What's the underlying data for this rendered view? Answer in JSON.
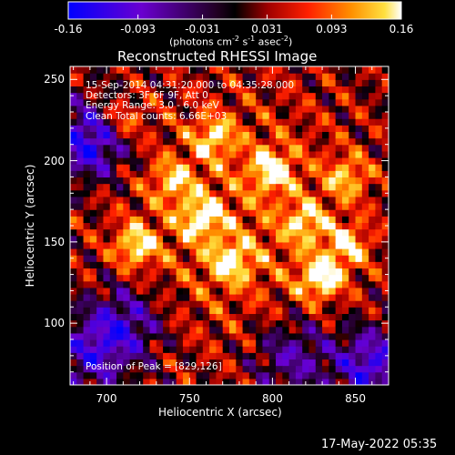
{
  "colorbar": {
    "tick_labels": [
      "-0.16",
      "-0.093",
      "-0.031",
      "0.031",
      "0.093",
      "0.16"
    ],
    "tick_values": [
      -0.16,
      -0.093,
      -0.031,
      0.031,
      0.093,
      0.16
    ],
    "range": [
      -0.16,
      0.16
    ],
    "unit_label_prefix": "(photons cm",
    "unit_exp1": "-2",
    "unit_mid": " s",
    "unit_exp2": "-1",
    "unit_mid2": " asec",
    "unit_exp3": "-2",
    "unit_close": ")",
    "colormap": "red-temperature (blue-purple-black-red-orange-yellow-white)"
  },
  "chart_data": {
    "type": "heatmap",
    "title": "Reconstructed RHESSI Image",
    "xlabel": "Heliocentric X (arcsec)",
    "ylabel": "Heliocentric Y (arcsec)",
    "xlim": [
      678,
      870
    ],
    "ylim": [
      62,
      258
    ],
    "x_ticks": [
      700,
      750,
      800,
      850
    ],
    "y_ticks": [
      100,
      150,
      200,
      250
    ],
    "x_tick_labels": [
      "700",
      "750",
      "800",
      "850"
    ],
    "y_tick_labels": [
      "100",
      "150",
      "200",
      "250"
    ],
    "peak": [
      829,
      126
    ],
    "bright_sources": [
      {
        "x": 829,
        "y": 128,
        "value": 0.16
      },
      {
        "x": 718,
        "y": 148,
        "value": 0.14
      },
      {
        "x": 757,
        "y": 165,
        "value": 0.13
      },
      {
        "x": 775,
        "y": 138,
        "value": 0.13
      },
      {
        "x": 800,
        "y": 195,
        "value": 0.14
      },
      {
        "x": 845,
        "y": 148,
        "value": 0.13
      },
      {
        "x": 765,
        "y": 215,
        "value": 0.12
      },
      {
        "x": 845,
        "y": 190,
        "value": 0.11
      },
      {
        "x": 820,
        "y": 162,
        "value": 0.11
      },
      {
        "x": 740,
        "y": 188,
        "value": 0.1
      },
      {
        "x": 710,
        "y": 225,
        "value": 0.1
      }
    ],
    "dark_regions": [
      {
        "x": 690,
        "y": 212,
        "value": -0.16
      },
      {
        "x": 710,
        "y": 100,
        "value": -0.12
      },
      {
        "x": 860,
        "y": 75,
        "value": -0.14
      },
      {
        "x": 812,
        "y": 80,
        "value": -0.1
      },
      {
        "x": 690,
        "y": 80,
        "value": -0.1
      }
    ],
    "annotations": [
      "15-Sep-2014 04:31:20.000 to 04:35:28.000",
      "Detectors: 3F 6F 9F, Att 0",
      "Energy Range: 3.0 - 6.0 keV",
      "Clean     Total counts: 6.66E+03",
      "Position of Peak = [829,126]"
    ]
  },
  "footer": {
    "timestamp": "17-May-2022 05:35"
  }
}
